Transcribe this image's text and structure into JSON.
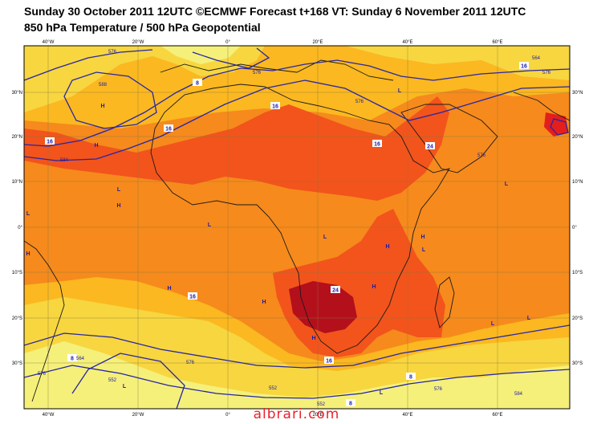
{
  "title_line1": "Sunday 30 October 2011 12UTC ©ECMWF Forecast t+168 VT: Sunday 6 November 2011 12UTC",
  "title_line2": "850 hPa Temperature / 500 hPa Geopotential",
  "watermark": "albrari.com",
  "lon_ticks": [
    "40°W",
    "20°W",
    "0°",
    "20°E",
    "40°E",
    "60°E"
  ],
  "lat_ticks_left": [
    "30°N",
    "20°N",
    "10°N",
    "0°",
    "10°S",
    "20°S",
    "30°S"
  ],
  "lat_ticks_right": [
    "30°N",
    "20°N",
    "10°N",
    "0°",
    "10°S",
    "20°S",
    "30°S"
  ],
  "pressure_centres": [
    "H",
    "H",
    "H",
    "H",
    "H",
    "H",
    "H",
    "H",
    "H",
    "H",
    "L",
    "L",
    "L",
    "L",
    "L",
    "L",
    "L",
    "L",
    "L",
    "L",
    "L"
  ],
  "geopotential_labels": [
    "576",
    "588",
    "576",
    "564",
    "576",
    "576",
    "584",
    "576",
    "564",
    "576",
    "576",
    "552",
    "552",
    "552",
    "576",
    "584"
  ],
  "temperature_labels": [
    "16",
    "16",
    "16",
    "16",
    "24",
    "8",
    "16",
    "8",
    "24",
    "16",
    "8",
    "16",
    "8"
  ],
  "colors": {
    "frame": "#000000",
    "grid": "#8a7a3a",
    "contour": "#2626a6",
    "coast": "#1a1a1a",
    "temp_4_8": "#f5f07a",
    "temp_8_12": "#f7d640",
    "temp_12_16": "#fbb820",
    "temp_16_20": "#f68a1c",
    "temp_20_24": "#f2541c",
    "temp_24_28": "#e41e1c",
    "temp_28_plus": "#b3101c"
  }
}
